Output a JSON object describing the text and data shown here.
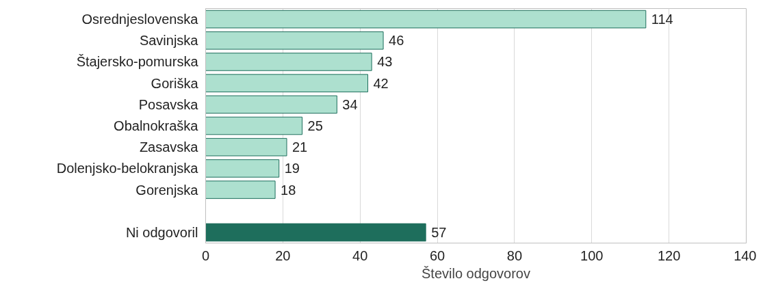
{
  "chart_data": {
    "type": "bar",
    "orientation": "horizontal",
    "xlabel": "Število odgovorov",
    "categories": [
      "Osrednjeslovenska",
      "Savinjska",
      "Štajersko-pomurska",
      "Goriška",
      "Posavska",
      "Obalnokraška",
      "Zasavska",
      "Dolenjsko-belokranjska",
      "Gorenjska",
      null,
      "Ni odgovoril"
    ],
    "values": [
      114,
      46,
      43,
      42,
      34,
      25,
      21,
      19,
      18,
      null,
      57
    ],
    "colors": [
      "#ade0cf",
      "#ade0cf",
      "#ade0cf",
      "#ade0cf",
      "#ade0cf",
      "#ade0cf",
      "#ade0cf",
      "#ade0cf",
      "#ade0cf",
      "#ade0cf",
      "#1e6e5c"
    ],
    "xlim": [
      0,
      140
    ],
    "xticks": [
      0,
      20,
      40,
      60,
      80,
      100,
      120,
      140
    ],
    "grid": "x",
    "data_labels": true
  }
}
